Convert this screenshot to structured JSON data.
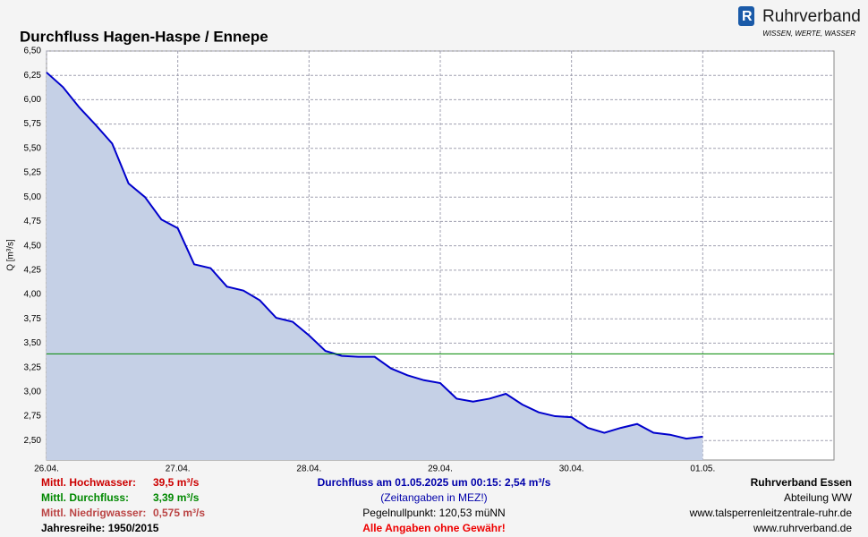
{
  "header": {
    "brand": "Ruhrverband",
    "slogan": "WISSEN, WERTE, WASSER"
  },
  "chart_data": {
    "type": "area",
    "title": "Durchfluss Hagen-Haspe / Ennepe",
    "y_label": "Q [m³/s]",
    "x": [
      0,
      0.125,
      0.25,
      0.375,
      0.5,
      0.625,
      0.75,
      0.875,
      1,
      1.125,
      1.25,
      1.375,
      1.5,
      1.625,
      1.75,
      1.875,
      2,
      2.125,
      2.25,
      2.375,
      2.5,
      2.625,
      2.75,
      2.875,
      3,
      3.125,
      3.25,
      3.375,
      3.5,
      3.625,
      3.75,
      3.875,
      4,
      4.125,
      4.25,
      4.375,
      4.5,
      4.625,
      4.75,
      4.875,
      5
    ],
    "series": [
      {
        "name": "Durchfluss",
        "color": "#0000cc",
        "fill": "#c5d0e6",
        "values": [
          6.28,
          6.13,
          5.92,
          5.74,
          5.55,
          5.14,
          5.0,
          4.77,
          4.68,
          4.31,
          4.27,
          4.08,
          4.04,
          3.94,
          3.76,
          3.72,
          3.58,
          3.42,
          3.37,
          3.36,
          3.36,
          3.24,
          3.17,
          3.12,
          3.09,
          2.93,
          2.9,
          2.93,
          2.98,
          2.87,
          2.79,
          2.75,
          2.74,
          2.63,
          2.58,
          2.63,
          2.67,
          2.58,
          2.56,
          2.52,
          2.54
        ]
      }
    ],
    "mean_line": {
      "value": 3.39,
      "color": "#008800"
    },
    "xlim": [
      0,
      6
    ],
    "xticks": [
      {
        "value": 0,
        "label": "26.04."
      },
      {
        "value": 1,
        "label": "27.04."
      },
      {
        "value": 2,
        "label": "28.04."
      },
      {
        "value": 3,
        "label": "29.04."
      },
      {
        "value": 4,
        "label": "30.04."
      },
      {
        "value": 5,
        "label": "01.05."
      }
    ],
    "ylim": [
      2.3,
      6.5
    ],
    "yticks": [
      {
        "value": 2.5,
        "label": "2,50"
      },
      {
        "value": 2.75,
        "label": "2,75"
      },
      {
        "value": 3,
        "label": "3,00"
      },
      {
        "value": 3.25,
        "label": "3,25"
      },
      {
        "value": 3.5,
        "label": "3,50"
      },
      {
        "value": 3.75,
        "label": "3,75"
      },
      {
        "value": 4,
        "label": "4,00"
      },
      {
        "value": 4.25,
        "label": "4,25"
      },
      {
        "value": 4.5,
        "label": "4,50"
      },
      {
        "value": 4.75,
        "label": "4,75"
      },
      {
        "value": 5,
        "label": "5,00"
      },
      {
        "value": 5.25,
        "label": "5,25"
      },
      {
        "value": 5.5,
        "label": "5,50"
      },
      {
        "value": 5.75,
        "label": "5,75"
      },
      {
        "value": 6,
        "label": "6,00"
      },
      {
        "value": 6.25,
        "label": "6,25"
      },
      {
        "value": 6.5,
        "label": "6,50"
      }
    ],
    "grid": true
  },
  "footer": {
    "left": [
      {
        "label": "Mittl. Hochwasser:",
        "value": "39,5 m³/s",
        "color": "#cc0000"
      },
      {
        "label": "Mittl. Durchfluss:",
        "value": "3,39 m³/s",
        "color": "#008800"
      },
      {
        "label": "Mittl. Niedrigwasser:",
        "value": "0,575 m³/s",
        "color": "#bb4444"
      }
    ],
    "series_years": "Jahresreihe: 1950/2015",
    "center": [
      "Durchfluss am 01.05.2025 um 00:15: 2,54 m³/s",
      "(Zeitangaben in MEZ!)",
      "Pegelnullpunkt: 120,53 müNN",
      "Alle Angaben ohne Gewähr!"
    ],
    "right": [
      "Ruhrverband Essen",
      "Abteilung WW",
      "www.talsperrenleitzentrale-ruhr.de",
      "www.ruhrverband.de"
    ]
  }
}
